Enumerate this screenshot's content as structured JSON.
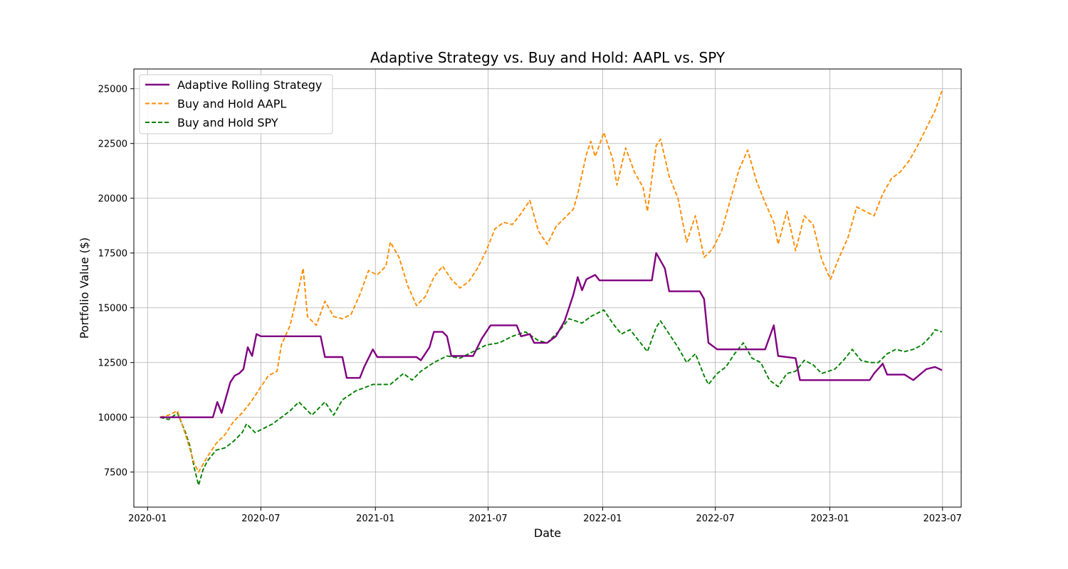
{
  "chart_data": {
    "type": "line",
    "title": "Adaptive Strategy vs. Buy and Hold: AAPL vs. SPY",
    "xlabel": "Date",
    "ylabel": "Portfolio Value ($)",
    "x_range": [
      "2019-12-10",
      "2023-07-31"
    ],
    "ylim": [
      5900,
      25900
    ],
    "x_ticks": [
      "2020-01",
      "2020-07",
      "2021-01",
      "2021-07",
      "2022-01",
      "2022-07",
      "2023-01",
      "2023-07"
    ],
    "y_ticks": [
      7500,
      10000,
      12500,
      15000,
      17500,
      20000,
      22500,
      25000
    ],
    "grid": true,
    "legend_position": "top-left",
    "series": [
      {
        "name": "Adaptive Rolling Strategy",
        "color": "#800080",
        "style": "solid",
        "points": [
          [
            "2020-01-21",
            10000
          ],
          [
            "2020-04-15",
            10000
          ],
          [
            "2020-04-22",
            10700
          ],
          [
            "2020-04-29",
            10200
          ],
          [
            "2020-05-06",
            10900
          ],
          [
            "2020-05-13",
            11600
          ],
          [
            "2020-05-20",
            11900
          ],
          [
            "2020-05-27",
            12000
          ],
          [
            "2020-06-03",
            12200
          ],
          [
            "2020-06-10",
            13200
          ],
          [
            "2020-06-17",
            12800
          ],
          [
            "2020-06-24",
            13800
          ],
          [
            "2020-07-01",
            13700
          ],
          [
            "2020-10-05",
            13700
          ],
          [
            "2020-10-12",
            12750
          ],
          [
            "2020-11-09",
            12750
          ],
          [
            "2020-11-16",
            11800
          ],
          [
            "2020-12-07",
            11800
          ],
          [
            "2020-12-14",
            12300
          ],
          [
            "2020-12-28",
            13100
          ],
          [
            "2021-01-04",
            12750
          ],
          [
            "2021-03-08",
            12750
          ],
          [
            "2021-03-15",
            12600
          ],
          [
            "2021-03-29",
            13200
          ],
          [
            "2021-04-05",
            13900
          ],
          [
            "2021-04-19",
            13900
          ],
          [
            "2021-04-26",
            13700
          ],
          [
            "2021-05-03",
            12800
          ],
          [
            "2021-06-07",
            12800
          ],
          [
            "2021-06-21",
            13600
          ],
          [
            "2021-07-05",
            14200
          ],
          [
            "2021-08-16",
            14200
          ],
          [
            "2021-08-23",
            13700
          ],
          [
            "2021-09-06",
            13800
          ],
          [
            "2021-09-13",
            13400
          ],
          [
            "2021-10-04",
            13400
          ],
          [
            "2021-10-18",
            13700
          ],
          [
            "2021-11-01",
            14400
          ],
          [
            "2021-11-08",
            15000
          ],
          [
            "2021-11-15",
            15600
          ],
          [
            "2021-11-22",
            16400
          ],
          [
            "2021-11-29",
            15800
          ],
          [
            "2021-12-06",
            16300
          ],
          [
            "2021-12-20",
            16500
          ],
          [
            "2021-12-27",
            16250
          ],
          [
            "2022-03-21",
            16250
          ],
          [
            "2022-03-28",
            17500
          ],
          [
            "2022-04-11",
            16800
          ],
          [
            "2022-04-18",
            15750
          ],
          [
            "2022-06-06",
            15750
          ],
          [
            "2022-06-13",
            15400
          ],
          [
            "2022-06-20",
            13400
          ],
          [
            "2022-07-04",
            13100
          ],
          [
            "2022-09-19",
            13100
          ],
          [
            "2022-10-03",
            14200
          ],
          [
            "2022-10-10",
            12800
          ],
          [
            "2022-11-07",
            12700
          ],
          [
            "2022-11-14",
            11700
          ],
          [
            "2023-03-06",
            11700
          ],
          [
            "2023-03-13",
            12000
          ],
          [
            "2023-03-27",
            12450
          ],
          [
            "2023-04-03",
            11950
          ],
          [
            "2023-05-01",
            11950
          ],
          [
            "2023-05-15",
            11700
          ],
          [
            "2023-06-05",
            12200
          ],
          [
            "2023-06-19",
            12300
          ],
          [
            "2023-06-30",
            12150
          ]
        ]
      },
      {
        "name": "Buy and Hold AAPL",
        "color": "#ff8c00",
        "style": "dashed",
        "points": [
          [
            "2020-01-21",
            10000
          ],
          [
            "2020-02-04",
            10100
          ],
          [
            "2020-02-18",
            10300
          ],
          [
            "2020-03-02",
            9200
          ],
          [
            "2020-03-16",
            7900
          ],
          [
            "2020-03-23",
            7500
          ],
          [
            "2020-04-06",
            8200
          ],
          [
            "2020-04-20",
            8800
          ],
          [
            "2020-05-04",
            9200
          ],
          [
            "2020-05-18",
            9800
          ],
          [
            "2020-06-01",
            10200
          ],
          [
            "2020-06-15",
            10700
          ],
          [
            "2020-06-29",
            11300
          ],
          [
            "2020-07-13",
            11900
          ],
          [
            "2020-07-27",
            12100
          ],
          [
            "2020-08-03",
            13300
          ],
          [
            "2020-08-17",
            14200
          ],
          [
            "2020-08-31",
            15900
          ],
          [
            "2020-09-07",
            16800
          ],
          [
            "2020-09-14",
            14600
          ],
          [
            "2020-09-28",
            14200
          ],
          [
            "2020-10-12",
            15300
          ],
          [
            "2020-10-26",
            14600
          ],
          [
            "2020-11-09",
            14500
          ],
          [
            "2020-11-23",
            14700
          ],
          [
            "2020-12-07",
            15600
          ],
          [
            "2020-12-21",
            16700
          ],
          [
            "2021-01-04",
            16500
          ],
          [
            "2021-01-18",
            16900
          ],
          [
            "2021-01-25",
            18000
          ],
          [
            "2021-02-08",
            17300
          ],
          [
            "2021-02-22",
            16000
          ],
          [
            "2021-03-08",
            15100
          ],
          [
            "2021-03-22",
            15500
          ],
          [
            "2021-04-05",
            16400
          ],
          [
            "2021-04-19",
            16900
          ],
          [
            "2021-05-03",
            16300
          ],
          [
            "2021-05-17",
            15900
          ],
          [
            "2021-05-31",
            16200
          ],
          [
            "2021-06-14",
            16800
          ],
          [
            "2021-06-28",
            17600
          ],
          [
            "2021-07-12",
            18600
          ],
          [
            "2021-07-26",
            18900
          ],
          [
            "2021-08-09",
            18800
          ],
          [
            "2021-08-23",
            19300
          ],
          [
            "2021-09-06",
            19900
          ],
          [
            "2021-09-20",
            18500
          ],
          [
            "2021-10-04",
            17900
          ],
          [
            "2021-10-18",
            18700
          ],
          [
            "2021-11-01",
            19100
          ],
          [
            "2021-11-15",
            19500
          ],
          [
            "2021-11-22",
            20200
          ],
          [
            "2021-12-06",
            22000
          ],
          [
            "2021-12-13",
            22600
          ],
          [
            "2021-12-20",
            21900
          ],
          [
            "2022-01-03",
            23000
          ],
          [
            "2022-01-17",
            21800
          ],
          [
            "2022-01-24",
            20600
          ],
          [
            "2022-02-07",
            22300
          ],
          [
            "2022-02-21",
            21200
          ],
          [
            "2022-03-07",
            20500
          ],
          [
            "2022-03-14",
            19400
          ],
          [
            "2022-03-28",
            22400
          ],
          [
            "2022-04-04",
            22700
          ],
          [
            "2022-04-18",
            21000
          ],
          [
            "2022-05-02",
            20000
          ],
          [
            "2022-05-16",
            18000
          ],
          [
            "2022-05-30",
            19200
          ],
          [
            "2022-06-13",
            17300
          ],
          [
            "2022-06-27",
            17700
          ],
          [
            "2022-07-11",
            18500
          ],
          [
            "2022-07-25",
            19900
          ],
          [
            "2022-08-08",
            21300
          ],
          [
            "2022-08-22",
            22200
          ],
          [
            "2022-09-05",
            20800
          ],
          [
            "2022-09-19",
            19800
          ],
          [
            "2022-10-03",
            18900
          ],
          [
            "2022-10-10",
            17900
          ],
          [
            "2022-10-24",
            19400
          ],
          [
            "2022-11-07",
            17600
          ],
          [
            "2022-11-21",
            19200
          ],
          [
            "2022-12-05",
            18800
          ],
          [
            "2022-12-19",
            17200
          ],
          [
            "2023-01-02",
            16300
          ],
          [
            "2023-01-16",
            17300
          ],
          [
            "2023-01-30",
            18200
          ],
          [
            "2023-02-13",
            19600
          ],
          [
            "2023-02-27",
            19400
          ],
          [
            "2023-03-13",
            19200
          ],
          [
            "2023-03-27",
            20200
          ],
          [
            "2023-04-10",
            20900
          ],
          [
            "2023-04-24",
            21200
          ],
          [
            "2023-05-08",
            21700
          ],
          [
            "2023-05-22",
            22400
          ],
          [
            "2023-06-05",
            23200
          ],
          [
            "2023-06-19",
            24000
          ],
          [
            "2023-06-30",
            24900
          ]
        ]
      },
      {
        "name": "Buy and Hold SPY",
        "color": "#008000",
        "style": "dashed",
        "points": [
          [
            "2020-01-21",
            10000
          ],
          [
            "2020-02-04",
            9900
          ],
          [
            "2020-02-18",
            10200
          ],
          [
            "2020-03-02",
            9300
          ],
          [
            "2020-03-09",
            8700
          ],
          [
            "2020-03-16",
            7700
          ],
          [
            "2020-03-23",
            6900
          ],
          [
            "2020-03-30",
            7600
          ],
          [
            "2020-04-06",
            8000
          ],
          [
            "2020-04-20",
            8500
          ],
          [
            "2020-05-04",
            8600
          ],
          [
            "2020-05-18",
            8900
          ],
          [
            "2020-06-01",
            9300
          ],
          [
            "2020-06-08",
            9700
          ],
          [
            "2020-06-22",
            9300
          ],
          [
            "2020-07-06",
            9500
          ],
          [
            "2020-07-20",
            9700
          ],
          [
            "2020-08-03",
            10000
          ],
          [
            "2020-08-17",
            10300
          ],
          [
            "2020-08-31",
            10700
          ],
          [
            "2020-09-21",
            10100
          ],
          [
            "2020-10-12",
            10700
          ],
          [
            "2020-10-26",
            10100
          ],
          [
            "2020-11-09",
            10800
          ],
          [
            "2020-11-30",
            11200
          ],
          [
            "2020-12-28",
            11500
          ],
          [
            "2021-01-25",
            11500
          ],
          [
            "2021-02-15",
            12000
          ],
          [
            "2021-03-01",
            11700
          ],
          [
            "2021-03-15",
            12100
          ],
          [
            "2021-04-05",
            12500
          ],
          [
            "2021-04-26",
            12800
          ],
          [
            "2021-05-17",
            12700
          ],
          [
            "2021-06-07",
            13000
          ],
          [
            "2021-06-28",
            13300
          ],
          [
            "2021-07-19",
            13400
          ],
          [
            "2021-08-09",
            13700
          ],
          [
            "2021-08-30",
            13900
          ],
          [
            "2021-09-20",
            13500
          ],
          [
            "2021-10-04",
            13400
          ],
          [
            "2021-10-25",
            14000
          ],
          [
            "2021-11-08",
            14500
          ],
          [
            "2021-11-29",
            14300
          ],
          [
            "2021-12-13",
            14600
          ],
          [
            "2022-01-03",
            14900
          ],
          [
            "2022-01-17",
            14300
          ],
          [
            "2022-01-31",
            13800
          ],
          [
            "2022-02-14",
            14000
          ],
          [
            "2022-02-28",
            13500
          ],
          [
            "2022-03-14",
            13000
          ],
          [
            "2022-03-28",
            14100
          ],
          [
            "2022-04-04",
            14400
          ],
          [
            "2022-04-18",
            13800
          ],
          [
            "2022-05-02",
            13200
          ],
          [
            "2022-05-16",
            12500
          ],
          [
            "2022-05-30",
            12900
          ],
          [
            "2022-06-13",
            11900
          ],
          [
            "2022-06-20",
            11500
          ],
          [
            "2022-07-04",
            12000
          ],
          [
            "2022-07-18",
            12300
          ],
          [
            "2022-08-01",
            12900
          ],
          [
            "2022-08-15",
            13400
          ],
          [
            "2022-08-29",
            12700
          ],
          [
            "2022-09-12",
            12500
          ],
          [
            "2022-09-26",
            11700
          ],
          [
            "2022-10-10",
            11400
          ],
          [
            "2022-10-24",
            12000
          ],
          [
            "2022-11-07",
            12100
          ],
          [
            "2022-11-21",
            12600
          ],
          [
            "2022-12-05",
            12400
          ],
          [
            "2022-12-19",
            12000
          ],
          [
            "2023-01-09",
            12200
          ],
          [
            "2023-01-23",
            12600
          ],
          [
            "2023-02-06",
            13100
          ],
          [
            "2023-02-20",
            12600
          ],
          [
            "2023-03-06",
            12500
          ],
          [
            "2023-03-20",
            12500
          ],
          [
            "2023-04-03",
            12900
          ],
          [
            "2023-04-17",
            13100
          ],
          [
            "2023-05-01",
            13000
          ],
          [
            "2023-05-15",
            13100
          ],
          [
            "2023-05-29",
            13300
          ],
          [
            "2023-06-12",
            13700
          ],
          [
            "2023-06-19",
            14000
          ],
          [
            "2023-06-30",
            13900
          ]
        ]
      }
    ]
  }
}
